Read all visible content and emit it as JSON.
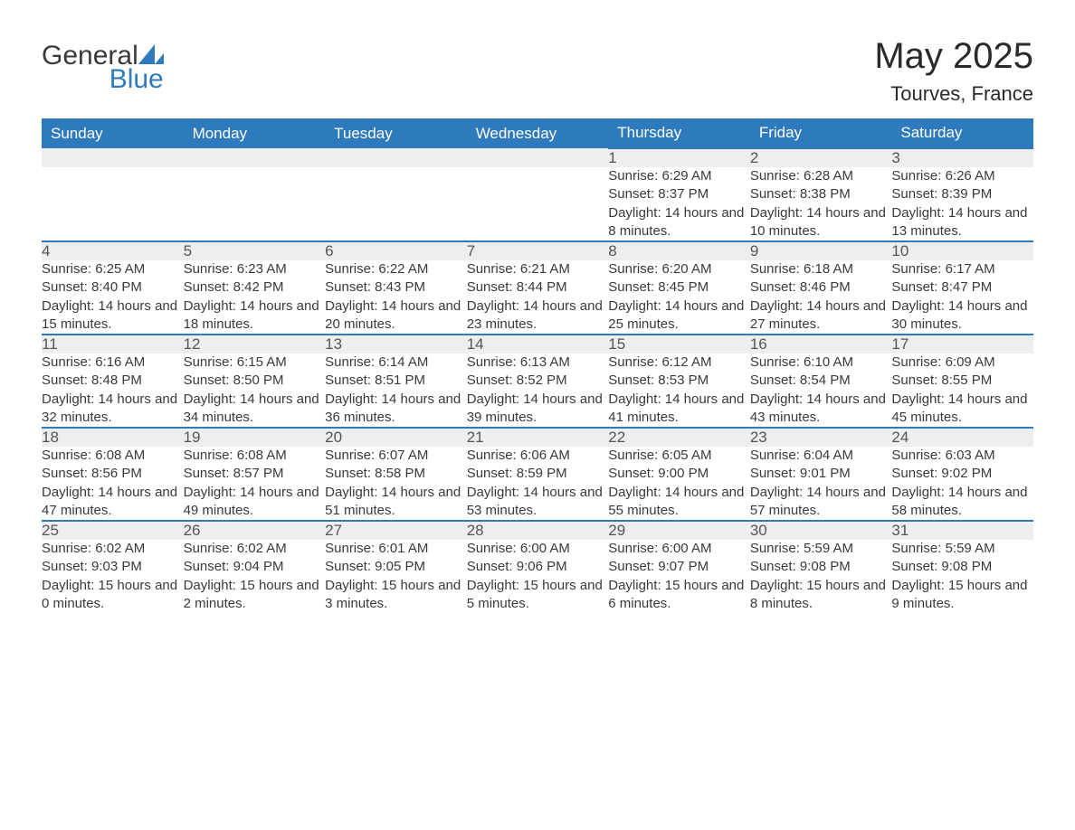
{
  "brand": {
    "name1": "General",
    "name2": "Blue",
    "logo_color": "#2d7bbd"
  },
  "title": {
    "month": "May 2025",
    "location": "Tourves, France"
  },
  "colors": {
    "header_bg": "#2d7bbd",
    "header_text": "#ffffff",
    "daynum_bg": "#eeeeee",
    "daynum_border": "#2d7bbd",
    "body_text": "#3a3a3a",
    "page_bg": "#ffffff"
  },
  "typography": {
    "title_fontsize": 40,
    "location_fontsize": 22,
    "header_fontsize": 17,
    "daynum_fontsize": 17,
    "detail_fontsize": 15,
    "font_family": "Segoe UI, Arial, sans-serif"
  },
  "layout": {
    "columns": 7,
    "first_day_column_index": 4
  },
  "weekdays": [
    "Sunday",
    "Monday",
    "Tuesday",
    "Wednesday",
    "Thursday",
    "Friday",
    "Saturday"
  ],
  "days": [
    {
      "n": 1,
      "sunrise": "6:29 AM",
      "sunset": "8:37 PM",
      "daylight": "14 hours and 8 minutes."
    },
    {
      "n": 2,
      "sunrise": "6:28 AM",
      "sunset": "8:38 PM",
      "daylight": "14 hours and 10 minutes."
    },
    {
      "n": 3,
      "sunrise": "6:26 AM",
      "sunset": "8:39 PM",
      "daylight": "14 hours and 13 minutes."
    },
    {
      "n": 4,
      "sunrise": "6:25 AM",
      "sunset": "8:40 PM",
      "daylight": "14 hours and 15 minutes."
    },
    {
      "n": 5,
      "sunrise": "6:23 AM",
      "sunset": "8:42 PM",
      "daylight": "14 hours and 18 minutes."
    },
    {
      "n": 6,
      "sunrise": "6:22 AM",
      "sunset": "8:43 PM",
      "daylight": "14 hours and 20 minutes."
    },
    {
      "n": 7,
      "sunrise": "6:21 AM",
      "sunset": "8:44 PM",
      "daylight": "14 hours and 23 minutes."
    },
    {
      "n": 8,
      "sunrise": "6:20 AM",
      "sunset": "8:45 PM",
      "daylight": "14 hours and 25 minutes."
    },
    {
      "n": 9,
      "sunrise": "6:18 AM",
      "sunset": "8:46 PM",
      "daylight": "14 hours and 27 minutes."
    },
    {
      "n": 10,
      "sunrise": "6:17 AM",
      "sunset": "8:47 PM",
      "daylight": "14 hours and 30 minutes."
    },
    {
      "n": 11,
      "sunrise": "6:16 AM",
      "sunset": "8:48 PM",
      "daylight": "14 hours and 32 minutes."
    },
    {
      "n": 12,
      "sunrise": "6:15 AM",
      "sunset": "8:50 PM",
      "daylight": "14 hours and 34 minutes."
    },
    {
      "n": 13,
      "sunrise": "6:14 AM",
      "sunset": "8:51 PM",
      "daylight": "14 hours and 36 minutes."
    },
    {
      "n": 14,
      "sunrise": "6:13 AM",
      "sunset": "8:52 PM",
      "daylight": "14 hours and 39 minutes."
    },
    {
      "n": 15,
      "sunrise": "6:12 AM",
      "sunset": "8:53 PM",
      "daylight": "14 hours and 41 minutes."
    },
    {
      "n": 16,
      "sunrise": "6:10 AM",
      "sunset": "8:54 PM",
      "daylight": "14 hours and 43 minutes."
    },
    {
      "n": 17,
      "sunrise": "6:09 AM",
      "sunset": "8:55 PM",
      "daylight": "14 hours and 45 minutes."
    },
    {
      "n": 18,
      "sunrise": "6:08 AM",
      "sunset": "8:56 PM",
      "daylight": "14 hours and 47 minutes."
    },
    {
      "n": 19,
      "sunrise": "6:08 AM",
      "sunset": "8:57 PM",
      "daylight": "14 hours and 49 minutes."
    },
    {
      "n": 20,
      "sunrise": "6:07 AM",
      "sunset": "8:58 PM",
      "daylight": "14 hours and 51 minutes."
    },
    {
      "n": 21,
      "sunrise": "6:06 AM",
      "sunset": "8:59 PM",
      "daylight": "14 hours and 53 minutes."
    },
    {
      "n": 22,
      "sunrise": "6:05 AM",
      "sunset": "9:00 PM",
      "daylight": "14 hours and 55 minutes."
    },
    {
      "n": 23,
      "sunrise": "6:04 AM",
      "sunset": "9:01 PM",
      "daylight": "14 hours and 57 minutes."
    },
    {
      "n": 24,
      "sunrise": "6:03 AM",
      "sunset": "9:02 PM",
      "daylight": "14 hours and 58 minutes."
    },
    {
      "n": 25,
      "sunrise": "6:02 AM",
      "sunset": "9:03 PM",
      "daylight": "15 hours and 0 minutes."
    },
    {
      "n": 26,
      "sunrise": "6:02 AM",
      "sunset": "9:04 PM",
      "daylight": "15 hours and 2 minutes."
    },
    {
      "n": 27,
      "sunrise": "6:01 AM",
      "sunset": "9:05 PM",
      "daylight": "15 hours and 3 minutes."
    },
    {
      "n": 28,
      "sunrise": "6:00 AM",
      "sunset": "9:06 PM",
      "daylight": "15 hours and 5 minutes."
    },
    {
      "n": 29,
      "sunrise": "6:00 AM",
      "sunset": "9:07 PM",
      "daylight": "15 hours and 6 minutes."
    },
    {
      "n": 30,
      "sunrise": "5:59 AM",
      "sunset": "9:08 PM",
      "daylight": "15 hours and 8 minutes."
    },
    {
      "n": 31,
      "sunrise": "5:59 AM",
      "sunset": "9:08 PM",
      "daylight": "15 hours and 9 minutes."
    }
  ],
  "labels": {
    "sunrise": "Sunrise:",
    "sunset": "Sunset:",
    "daylight": "Daylight:"
  }
}
